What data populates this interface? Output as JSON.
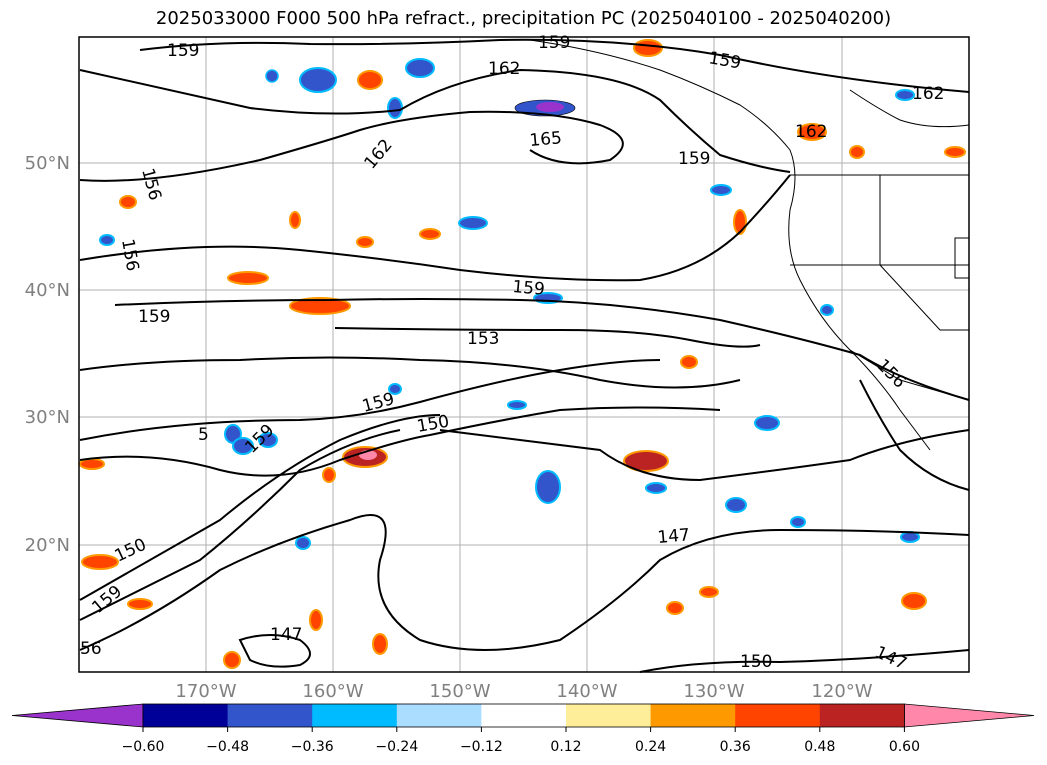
{
  "title": "2025033000 F000 500 hPa refract., precipitation PC (2025040100 - 2025040200)",
  "map": {
    "lat_labels": [
      "50°N",
      "40°N",
      "30°N",
      "20°N"
    ],
    "lon_labels": [
      "170°W",
      "160°W",
      "150°W",
      "140°W",
      "130°W",
      "120°W"
    ],
    "contour_labels": [
      "159",
      "159",
      "162",
      "159",
      "162",
      "165",
      "162",
      "162",
      "159",
      "156",
      "156",
      "159",
      "159",
      "153",
      "159",
      "150",
      "5",
      "159",
      "150",
      "147",
      "147",
      "150",
      "147",
      "156",
      "159",
      "56"
    ]
  },
  "colorbar": {
    "colors": [
      "#9933cc",
      "#000099",
      "#3355cc",
      "#00bbff",
      "#aaddff",
      "#ffffff",
      "#ffee99",
      "#ff9900",
      "#ff4400",
      "#bb2222",
      "#ff88aa"
    ],
    "tick_labels": [
      "−0.60",
      "−0.48",
      "−0.36",
      "−0.24",
      "−0.12",
      "0.12",
      "0.24",
      "0.36",
      "0.48",
      "0.60"
    ]
  }
}
